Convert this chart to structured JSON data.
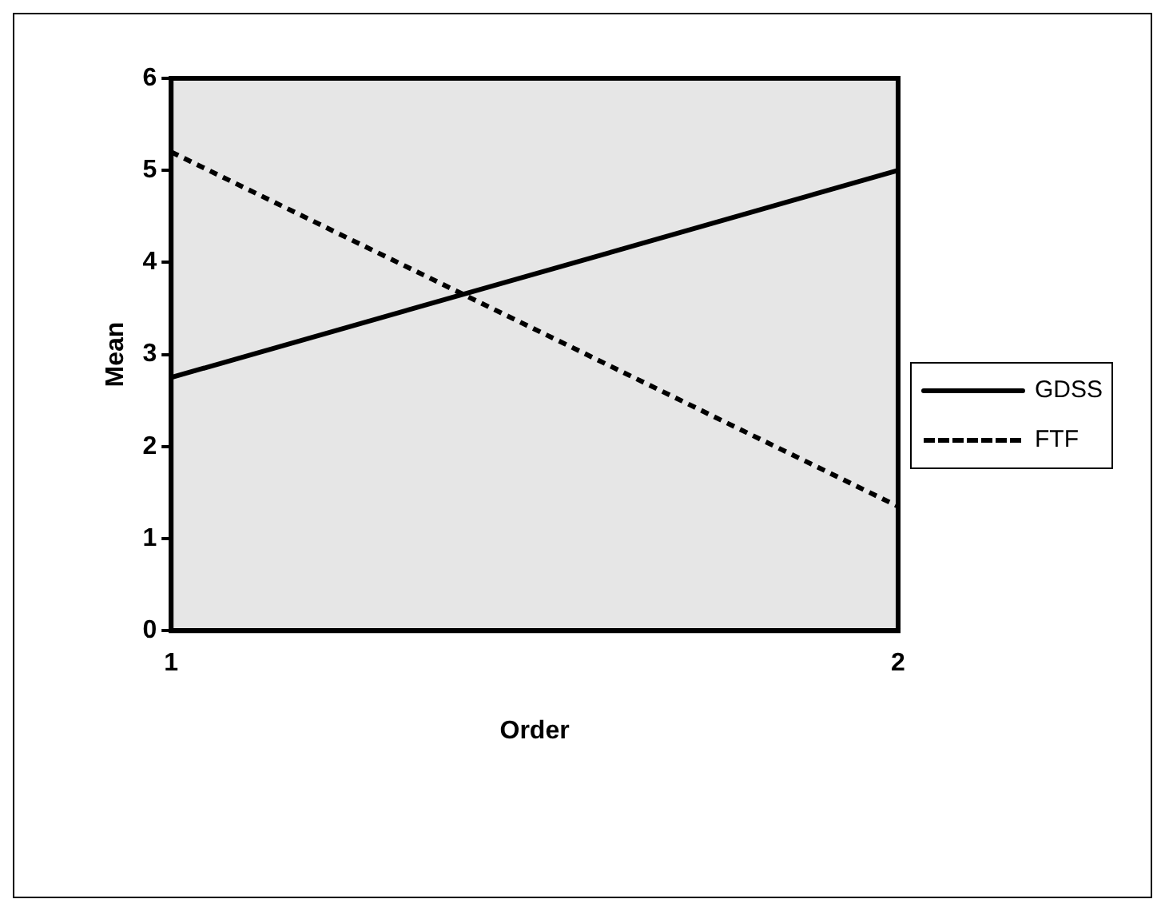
{
  "chart_data": {
    "type": "line",
    "xlabel": "Order",
    "ylabel": "Mean",
    "x": [
      1,
      2
    ],
    "series": [
      {
        "name": "GDSS",
        "color": "#000000",
        "values": [
          2.75,
          5.0
        ],
        "line_style": "solid"
      },
      {
        "name": "FTF",
        "color": "#000000",
        "values": [
          5.2,
          1.35
        ],
        "line_style": "dashed"
      }
    ],
    "xlim": [
      1,
      2
    ],
    "xticks": [
      1,
      2
    ],
    "ylim": [
      0,
      6
    ],
    "yticks": [
      0,
      1,
      2,
      3,
      4,
      5,
      6
    ],
    "grid": false,
    "legend": "right",
    "marker": "none"
  }
}
